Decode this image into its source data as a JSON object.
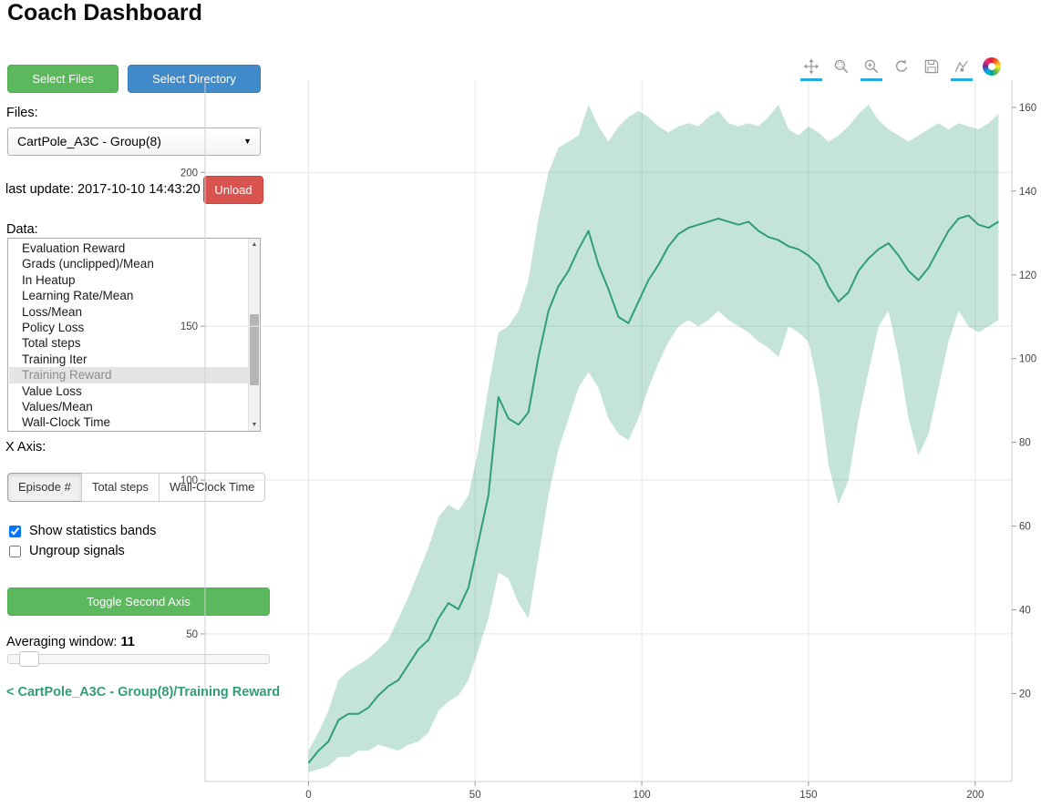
{
  "page": {
    "title": "Coach Dashboard"
  },
  "icons": {
    "dropdown_caret": "▼",
    "scroll_up": "▲",
    "scroll_down": "▼"
  },
  "sidebar": {
    "select_files_label": "Select Files",
    "select_directory_label": "Select Directory",
    "files_label": "Files:",
    "files_selected": "CartPole_A3C - Group(8)",
    "last_update_label": "last update: 2017-10-10 14:43:20",
    "unload_label": "Unload",
    "data_label": "Data:",
    "data_items": [
      "Evaluation Reward",
      "Grads (unclipped)/Mean",
      "In Heatup",
      "Learning Rate/Mean",
      "Loss/Mean",
      "Policy Loss",
      "Total steps",
      "Training Iter",
      "Training Reward",
      "Value Loss",
      "Values/Mean",
      "Wall-Clock Time"
    ],
    "data_selected": "Training Reward",
    "x_axis_label": "X Axis:",
    "x_axis_options": [
      "Episode #",
      "Total steps",
      "Wall-Clock Time"
    ],
    "x_axis_selected": "Episode #",
    "show_bands_label": "Show statistics bands",
    "show_bands_checked": true,
    "ungroup_label": "Ungroup signals",
    "ungroup_checked": false,
    "toggle_second_axis_label": "Toggle Second Axis",
    "averaging_label": "Averaging window:",
    "averaging_value": "11",
    "breadcrumb": "< CartPole_A3C - Group(8)/Training Reward"
  },
  "toolbar": {
    "active_underline_color": "#26aae1",
    "tools": [
      {
        "name": "pan",
        "active": true
      },
      {
        "name": "box-zoom",
        "active": false
      },
      {
        "name": "wheel-zoom",
        "active": true
      },
      {
        "name": "reset",
        "active": false
      },
      {
        "name": "save",
        "active": false
      },
      {
        "name": "hover",
        "active": true
      },
      {
        "name": "bokeh-logo",
        "active": false
      }
    ]
  },
  "chart_data": {
    "type": "line",
    "title": "",
    "xlabel": "",
    "ylabel": "",
    "series_name": "Training Reward",
    "band_label": "statistics band",
    "line_color": "#2f9e76",
    "band_color": "rgba(57,166,122,0.30)",
    "grid": true,
    "xlim": [
      -31,
      211
    ],
    "ylim_left": [
      2,
      230
    ],
    "ylim_right": [
      -1,
      166.5
    ],
    "xticks": [
      0,
      50,
      100,
      150,
      200
    ],
    "yticks_left": [
      50,
      100,
      150,
      200
    ],
    "yticks_right": [
      20,
      40,
      60,
      80,
      100,
      120,
      140,
      160
    ],
    "x": [
      0,
      3,
      6,
      9,
      12,
      15,
      18,
      21,
      24,
      27,
      30,
      33,
      36,
      39,
      42,
      45,
      48,
      51,
      54,
      57,
      60,
      63,
      66,
      69,
      72,
      75,
      78,
      81,
      84,
      87,
      90,
      93,
      96,
      99,
      102,
      105,
      108,
      111,
      114,
      117,
      120,
      123,
      126,
      129,
      132,
      135,
      138,
      141,
      144,
      147,
      150,
      153,
      156,
      159,
      162,
      165,
      168,
      171,
      174,
      177,
      180,
      183,
      186,
      189,
      192,
      195,
      198,
      201,
      204,
      207
    ],
    "mean": [
      8,
      12,
      15,
      22,
      24,
      24,
      26,
      30,
      33,
      35,
      40,
      45,
      48,
      55,
      60,
      58,
      65,
      80,
      95,
      127,
      120,
      118,
      122,
      140,
      155,
      163,
      168,
      175,
      181,
      170,
      162,
      153,
      151,
      158,
      165,
      170,
      176,
      180,
      182,
      183,
      184,
      185,
      184,
      183,
      184,
      181,
      179,
      178,
      176,
      175,
      173,
      170,
      163,
      158,
      161,
      168,
      172,
      175,
      177,
      173,
      168,
      165,
      169,
      175,
      181,
      185,
      186,
      183,
      182,
      184
    ],
    "upper": [
      12,
      18,
      25,
      35,
      38,
      40,
      42,
      45,
      48,
      55,
      62,
      70,
      78,
      88,
      92,
      90,
      95,
      110,
      130,
      148,
      150,
      155,
      165,
      185,
      200,
      208,
      210,
      212,
      222,
      215,
      210,
      215,
      218,
      220,
      218,
      215,
      213,
      215,
      216,
      215,
      218,
      220,
      216,
      215,
      216,
      215,
      218,
      222,
      214,
      212,
      215,
      213,
      210,
      212,
      215,
      219,
      222,
      217,
      214,
      212,
      210,
      212,
      214,
      216,
      214,
      216,
      215,
      214,
      216,
      219
    ],
    "lower": [
      5,
      6,
      7,
      10,
      10,
      12,
      12,
      14,
      13,
      12,
      14,
      15,
      18,
      25,
      28,
      30,
      35,
      45,
      55,
      70,
      68,
      60,
      55,
      75,
      95,
      110,
      120,
      130,
      135,
      130,
      120,
      115,
      113,
      120,
      130,
      138,
      145,
      150,
      152,
      150,
      152,
      155,
      152,
      150,
      148,
      145,
      143,
      140,
      150,
      148,
      145,
      130,
      105,
      92,
      100,
      120,
      135,
      150,
      155,
      140,
      120,
      108,
      115,
      130,
      145,
      155,
      150,
      148,
      150,
      152
    ]
  }
}
